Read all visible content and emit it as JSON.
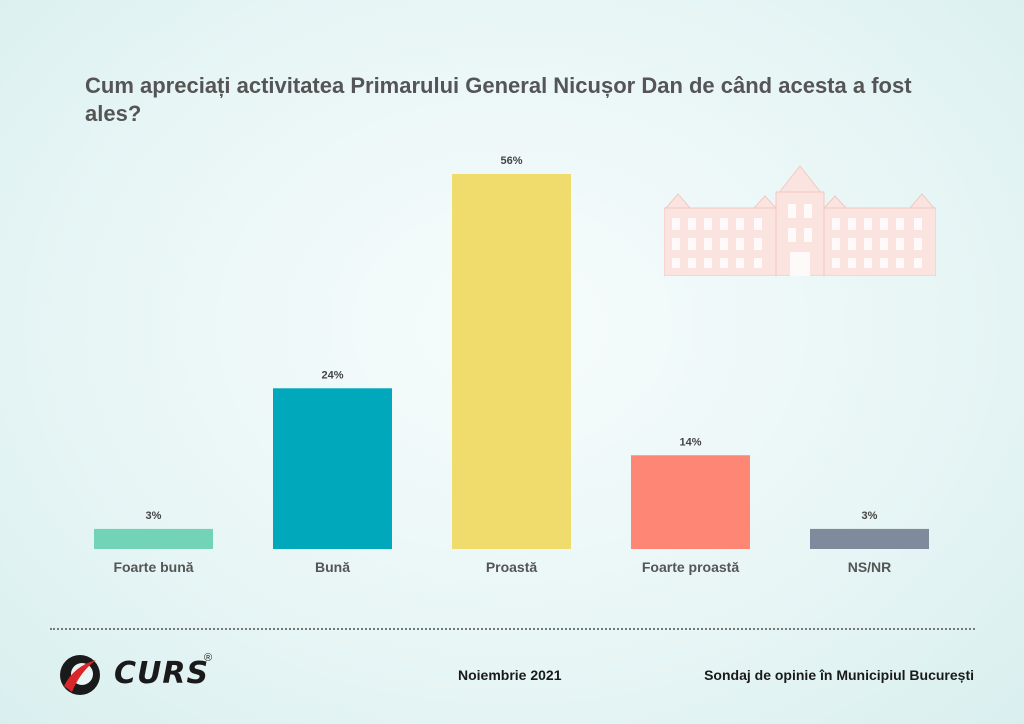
{
  "chart_data": {
    "type": "bar",
    "title": "Cum apreciați activitatea Primarului General Nicușor Dan de când acesta a fost ales?",
    "categories": [
      "Foarte bună",
      "Bună",
      "Proastă",
      "Foarte proastă",
      "NS/NR"
    ],
    "values": [
      3,
      24,
      56,
      14,
      3
    ],
    "value_labels": [
      "3%",
      "24%",
      "56%",
      "14%",
      "3%"
    ],
    "colors": [
      "#72d3b6",
      "#00a8bb",
      "#f0dc6c",
      "#fd8675",
      "#7f8b9d"
    ],
    "ylim": [
      0,
      56
    ],
    "grid": false,
    "legend": "none"
  },
  "footer": {
    "brand": "CURS",
    "brand_mark": "®",
    "date": "Noiembrie 2021",
    "survey": "Sondaj de opinie în Municipiul București"
  },
  "icons": {
    "logo": "curs-logo-icon",
    "illustration": "city-hall-building-icon"
  }
}
